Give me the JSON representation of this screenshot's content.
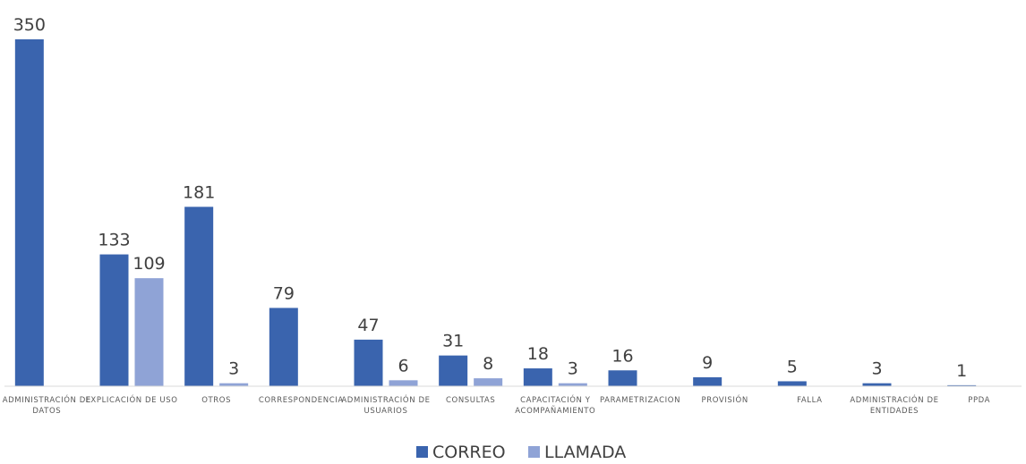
{
  "chart_data": {
    "type": "bar",
    "categories": [
      [
        "ADMINISTRACIÓN DE",
        "DATOS"
      ],
      [
        "EXPLICACIÓN DE USO"
      ],
      [
        "OTROS"
      ],
      [
        "CORRESPONDENCIA"
      ],
      [
        "ADMINISTRACIÓN DE",
        "USUARIOS"
      ],
      [
        "CONSULTAS"
      ],
      [
        "CAPACITACIÓN Y",
        "ACOMPAÑAMIENTO"
      ],
      [
        "PARAMETRIZACION"
      ],
      [
        "PROVISIÓN"
      ],
      [
        "FALLA"
      ],
      [
        "ADMINISTRACIÓN DE",
        "ENTIDADES"
      ],
      [
        "PPDA"
      ]
    ],
    "series": [
      {
        "name": "CORREO",
        "color": "#3A64AE",
        "values": [
          350,
          133,
          181,
          79,
          47,
          31,
          18,
          16,
          9,
          5,
          3,
          1
        ]
      },
      {
        "name": "LLAMADA",
        "color": "#8FA3D6",
        "values": [
          null,
          109,
          3,
          null,
          6,
          8,
          3,
          null,
          null,
          null,
          null,
          null
        ]
      }
    ],
    "title": "",
    "xlabel": "",
    "ylabel": "",
    "ylim": [
      0,
      350
    ],
    "grid": false,
    "legend": "bottom-center",
    "data_labels": true
  }
}
